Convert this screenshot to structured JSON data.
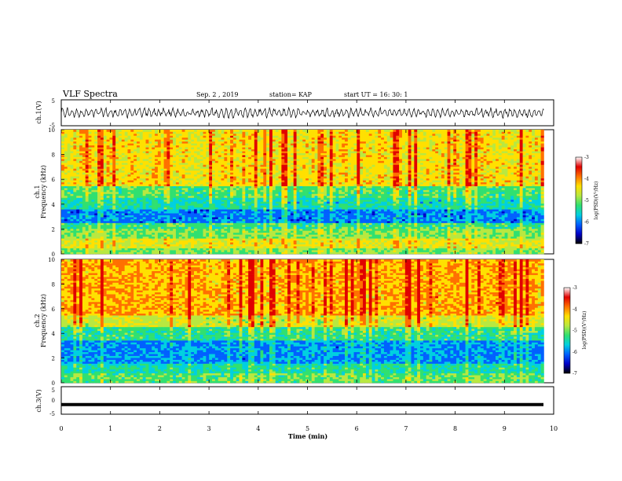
{
  "header": {
    "title": "VLF Spectra",
    "date": "Sep. 2 , 2019",
    "station": "station= KAP",
    "start": "start  UT =   16: 30: 1"
  },
  "colors": {
    "colormap": [
      "#000000",
      "#0000c8",
      "#0060ff",
      "#00d0e0",
      "#30e070",
      "#b8e840",
      "#ffe000",
      "#ff7000",
      "#e00000",
      "#ffffff"
    ]
  },
  "chart_data": [
    {
      "type": "line",
      "name": "ch1-waveform",
      "ylabel": "ch.1(V)",
      "ylim": [
        -5,
        5
      ],
      "yticks": [
        "5",
        "-5"
      ],
      "xlim": [
        0,
        10
      ],
      "description_values": "dense oscillating signal roughly between -1.5 and 1.5 V over 0-9.8 min"
    },
    {
      "type": "heatmap",
      "name": "ch1-spectrogram",
      "ylabel": "ch.1\nFrequency (kHz)",
      "ylim": [
        0,
        10
      ],
      "yticks": [
        "0",
        "2",
        "4",
        "6",
        "8",
        "10"
      ],
      "xlim": [
        0,
        9.8
      ],
      "colorbar": {
        "label": "log(PSD)(V²/Hz)",
        "range": [
          -7,
          -3
        ],
        "ticks": [
          "-3",
          "-4",
          "-5",
          "-6",
          "-7"
        ]
      },
      "bands": [
        {
          "f": [
            0.0,
            0.4
          ],
          "level": -5.0
        },
        {
          "f": [
            0.4,
            1.2
          ],
          "level": -4.4
        },
        {
          "f": [
            1.2,
            2.0
          ],
          "level": -5.0
        },
        {
          "f": [
            2.0,
            2.5
          ],
          "level": -5.3
        },
        {
          "f": [
            2.5,
            3.6
          ],
          "level": -6.3
        },
        {
          "f": [
            3.6,
            4.6
          ],
          "level": -5.6
        },
        {
          "f": [
            4.6,
            5.4
          ],
          "level": -5.2
        },
        {
          "f": [
            5.4,
            10.0
          ],
          "level": -4.2
        }
      ]
    },
    {
      "type": "heatmap",
      "name": "ch2-spectrogram",
      "ylabel": "ch.2\nFrequency (kHz)",
      "ylim": [
        0,
        10
      ],
      "yticks": [
        "0",
        "2",
        "4",
        "6",
        "8",
        "10"
      ],
      "xlim": [
        0,
        9.8
      ],
      "colorbar": {
        "label": "log(PSD)(V²/Hz)",
        "range": [
          -7,
          -3
        ],
        "ticks": [
          "-3",
          "-4",
          "-5",
          "-6",
          "-7"
        ]
      },
      "bands": [
        {
          "f": [
            0.0,
            0.8
          ],
          "level": -5.2
        },
        {
          "f": [
            0.8,
            1.5
          ],
          "level": -5.6
        },
        {
          "f": [
            1.5,
            3.5
          ],
          "level": -6.2
        },
        {
          "f": [
            3.5,
            4.5
          ],
          "level": -5.4
        },
        {
          "f": [
            4.5,
            5.5
          ],
          "level": -4.5
        },
        {
          "f": [
            5.5,
            10.0
          ],
          "level": -3.9
        }
      ]
    },
    {
      "type": "line",
      "name": "ch3-waveform",
      "ylabel": "ch.3(V)",
      "ylim": [
        -5,
        5
      ],
      "yticks": [
        "5",
        "0",
        "-5"
      ],
      "xlim": [
        0,
        10
      ],
      "y": -1.5
    }
  ],
  "xaxis": {
    "label": "Time (min)",
    "ticks": [
      "0",
      "1",
      "2",
      "3",
      "4",
      "5",
      "6",
      "7",
      "8",
      "9",
      "10"
    ],
    "range": [
      0,
      10
    ]
  }
}
